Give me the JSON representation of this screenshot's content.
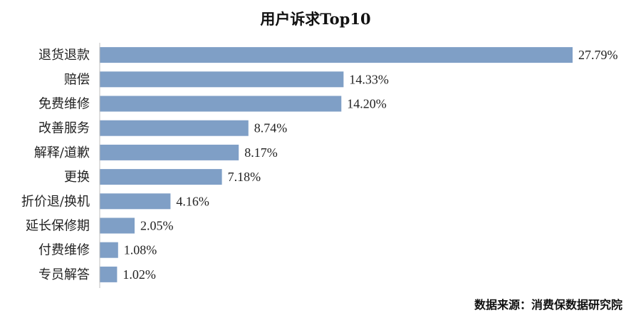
{
  "chart_data": {
    "type": "bar",
    "orientation": "horizontal",
    "title": "用户诉求Top10",
    "categories": [
      "退货退款",
      "赔偿",
      "免费维修",
      "改善服务",
      "解释/道歉",
      "更换",
      "折价退/换机",
      "延长保修期",
      "付费维修",
      "专员解答"
    ],
    "values": [
      27.79,
      14.33,
      14.2,
      8.74,
      8.17,
      7.18,
      4.16,
      2.05,
      1.08,
      1.02
    ],
    "value_labels": [
      "27.79%",
      "14.33%",
      "14.20%",
      "8.74%",
      "8.17%",
      "7.18%",
      "4.16%",
      "2.05%",
      "1.08%",
      "1.02%"
    ],
    "xlabel": "",
    "ylabel": "",
    "xlim": [
      0,
      28
    ],
    "grid": false,
    "legend": "none",
    "bar_color": "#7f9fc6",
    "axis_color": "#bfbfbf"
  },
  "source_note": "数据来源：消费保数据研究院"
}
